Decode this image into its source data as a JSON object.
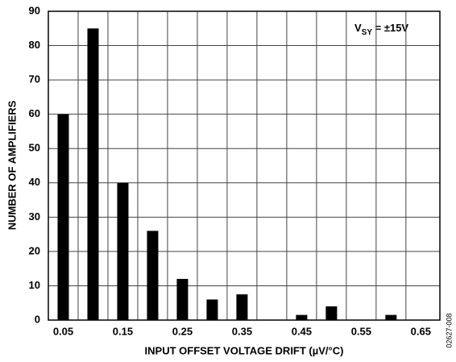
{
  "chart_data": {
    "type": "bar",
    "x": [
      0.05,
      0.1,
      0.15,
      0.2,
      0.25,
      0.3,
      0.35,
      0.45,
      0.5,
      0.6
    ],
    "values": [
      60,
      85,
      40,
      26,
      12,
      6,
      7.5,
      1.5,
      4,
      1.5
    ],
    "color": "#000000",
    "xlim": [
      0.025,
      0.682
    ],
    "xticks": [
      0.05,
      0.15,
      0.25,
      0.35,
      0.45,
      0.55,
      0.65
    ],
    "xgrid": [
      0.075,
      0.125,
      0.175,
      0.225,
      0.275,
      0.325,
      0.375,
      0.425,
      0.475,
      0.525,
      0.575,
      0.625
    ],
    "ylim": [
      0,
      90
    ],
    "yticks": [
      0,
      10,
      20,
      30,
      40,
      50,
      60,
      70,
      80,
      90
    ],
    "grid": true,
    "xlabel": "INPUT OFFSET VOLTAGE DRIFT (µV/°C)",
    "ylabel": "NUMBER OF AMPLIFIERS",
    "annotation": [
      "V",
      "SY",
      " = ±15V"
    ],
    "figure_id": "02627-008"
  }
}
